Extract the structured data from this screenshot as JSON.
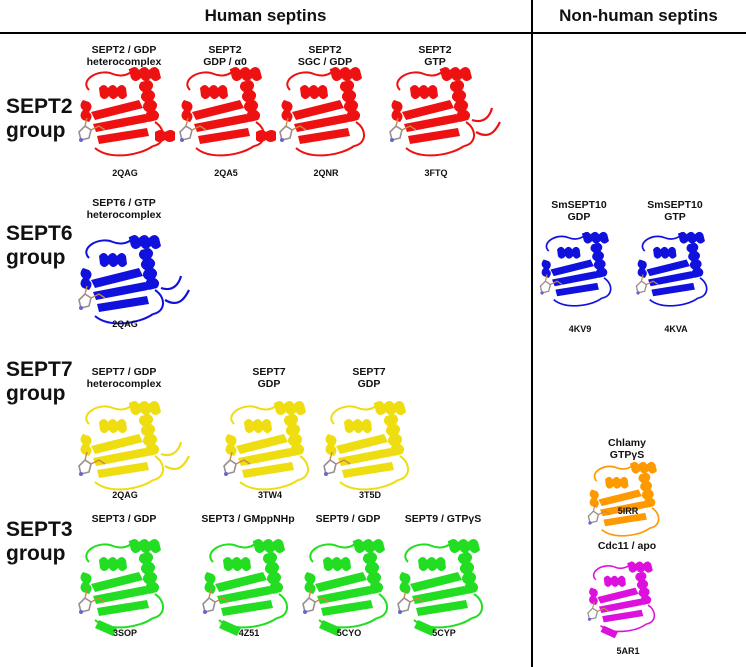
{
  "headers": {
    "human": "Human septins",
    "nonhuman": "Non-human septins"
  },
  "colors": {
    "red": "#ee1111",
    "blue": "#1111dd",
    "yellow": "#eedd11",
    "green": "#22dd22",
    "orange": "#ff9900",
    "magenta": "#dd11dd",
    "ligand": "#9a8f8f"
  },
  "groups": [
    {
      "label": "SEPT2\ngroup",
      "color": "red",
      "structures": [
        {
          "title": "SEPT2 / GDP\nheterocomplex",
          "pdb": "2QAG"
        },
        {
          "title": "SEPT2\nGDP / α0",
          "pdb": "2QA5"
        },
        {
          "title": "SEPT2\nSGC / GDP",
          "pdb": "2QNR"
        },
        {
          "title": "SEPT2\nGTP",
          "pdb": "3FTQ"
        }
      ]
    },
    {
      "label": "SEPT6\ngroup",
      "color": "blue",
      "structures": [
        {
          "title": "SEPT6 / GTP\nheterocomplex",
          "pdb": "2QAG"
        }
      ]
    },
    {
      "label": "SEPT7\ngroup",
      "color": "yellow",
      "structures": [
        {
          "title": "SEPT7 / GDP\nheterocomplex",
          "pdb": "2QAG"
        },
        {
          "title": "SEPT7\nGDP",
          "pdb": "3TW4"
        },
        {
          "title": "SEPT7\nGDP",
          "pdb": "3T5D"
        }
      ]
    },
    {
      "label": "SEPT3\ngroup",
      "color": "green",
      "structures": [
        {
          "title": "SEPT3 / GDP",
          "pdb": "3SOP"
        },
        {
          "title": "SEPT3 / GMppNHp",
          "pdb": "4Z51"
        },
        {
          "title": "SEPT9 / GDP",
          "pdb": "5CYO"
        },
        {
          "title": "SEPT9 / GTPγS",
          "pdb": "5CYP"
        }
      ]
    }
  ],
  "nonhuman": [
    {
      "title": "SmSEPT10\nGDP",
      "pdb": "4KV9",
      "color": "blue"
    },
    {
      "title": "SmSEPT10\nGTP",
      "pdb": "4KVA",
      "color": "blue"
    },
    {
      "title": "Chlamy\nGTPγS",
      "pdb": "5IRR",
      "color": "orange"
    },
    {
      "title": "Cdc11 / apo",
      "pdb": "5AR1",
      "color": "magenta"
    }
  ]
}
